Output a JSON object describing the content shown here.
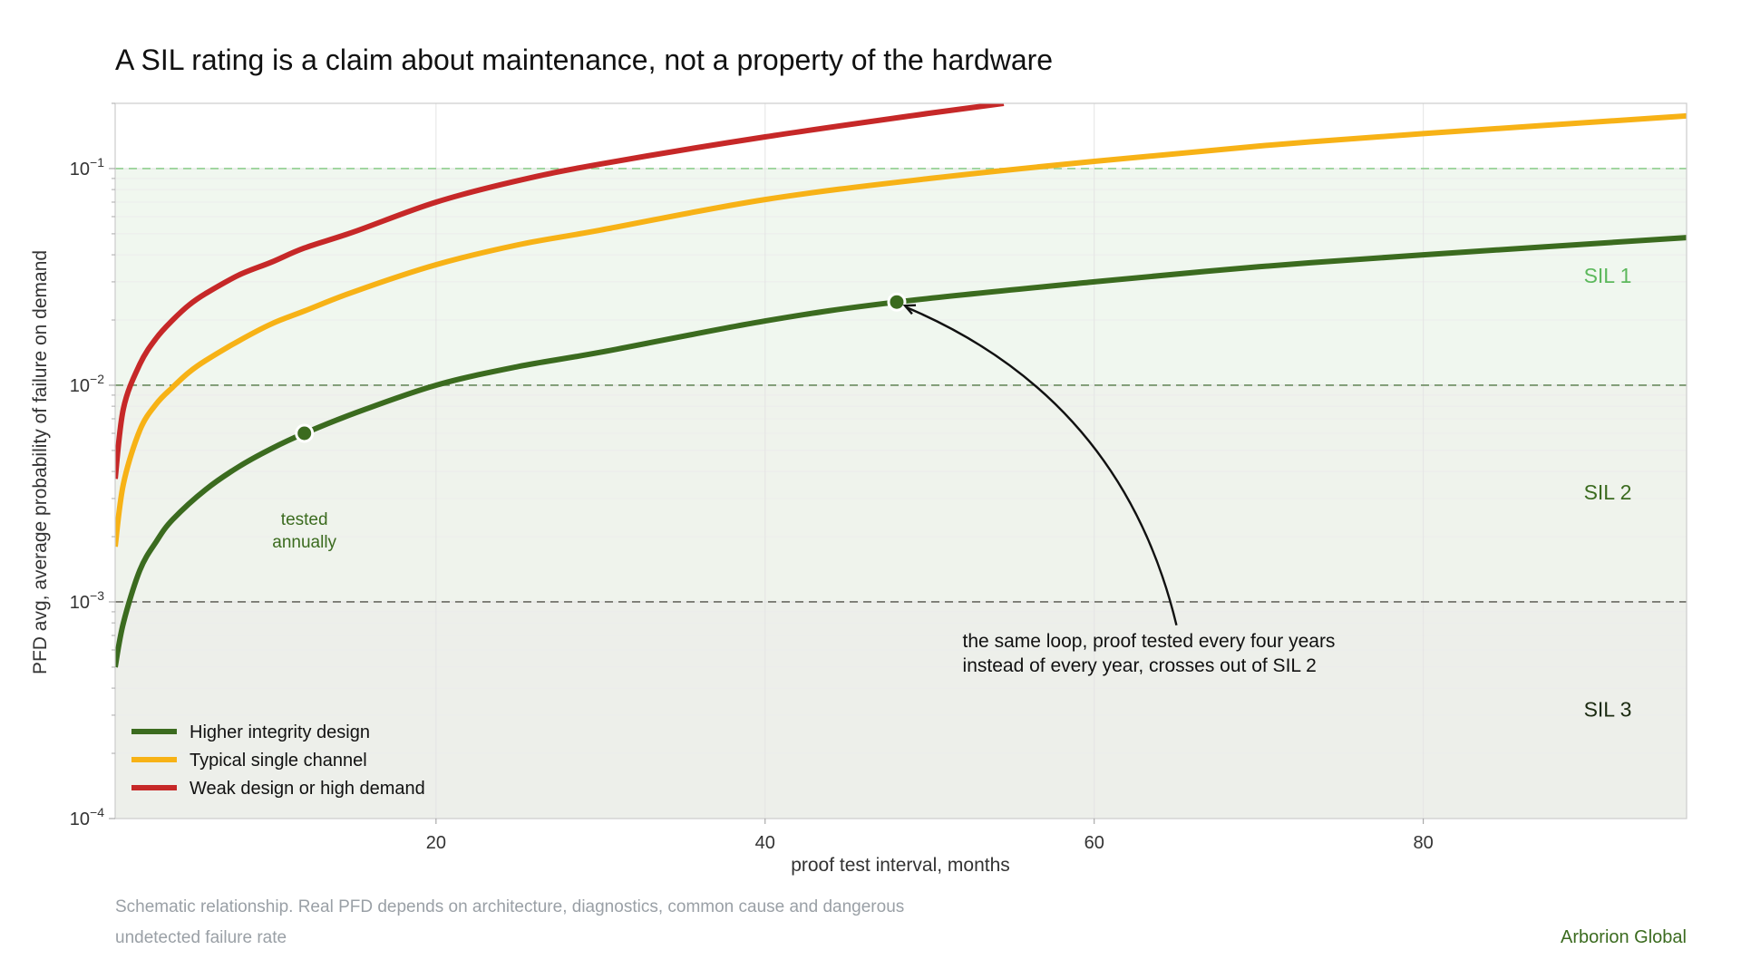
{
  "chart_data": {
    "type": "line",
    "title": "A SIL rating is a claim about maintenance, not a property of the hardware",
    "xlabel": "proof test interval, months",
    "ylabel": "PFD avg, average probability of failure on demand",
    "xlim": [
      0.5,
      96
    ],
    "ylim": [
      0.0001,
      0.2
    ],
    "x_scale": "linear",
    "y_scale": "log",
    "grid": true,
    "legend_position": "bottom-left",
    "x_ticks": [
      {
        "value": 20,
        "label": "20"
      },
      {
        "value": 40,
        "label": "40"
      },
      {
        "value": 60,
        "label": "60"
      },
      {
        "value": 80,
        "label": "80"
      }
    ],
    "y_ticks": [
      {
        "value": 0.1,
        "mant": "10",
        "exp": "−1"
      },
      {
        "value": 0.01,
        "mant": "10",
        "exp": "−2"
      },
      {
        "value": 0.001,
        "mant": "10",
        "exp": "−3"
      },
      {
        "value": 0.0001,
        "mant": "10",
        "exp": "−4"
      }
    ],
    "bands": [
      {
        "label": "SIL 1",
        "from": 0.01,
        "to": 0.1,
        "fill": "#f0f7ef",
        "label_y": 0.032,
        "label_color": "#5cb85c"
      },
      {
        "label": "SIL 2",
        "from": 0.001,
        "to": 0.01,
        "fill": "#eff3ec",
        "label_y": 0.0032,
        "label_color": "#3b6b1f"
      },
      {
        "label": "SIL 3",
        "from": 0.0001,
        "to": 0.001,
        "fill": "#edefea",
        "label_y": 0.00032,
        "label_color": "#1a2a10"
      }
    ],
    "thresholds": [
      {
        "value": 0.1,
        "color": "#8fce8f"
      },
      {
        "value": 0.01,
        "color": "#6a8a5e"
      },
      {
        "value": 0.001,
        "color": "#6a6a62"
      }
    ],
    "series": [
      {
        "name": "Higher integrity design",
        "color": "#3b6b1f",
        "x": [
          0.5,
          1,
          2,
          3,
          4,
          6,
          8,
          10,
          12,
          15,
          20,
          25,
          30,
          40,
          48,
          60,
          70,
          80,
          96
        ],
        "y": [
          0.0005,
          0.0008,
          0.0014,
          0.0019,
          0.0024,
          0.0033,
          0.0042,
          0.0051,
          0.006,
          0.0074,
          0.01,
          0.0122,
          0.0142,
          0.0198,
          0.0242,
          0.03,
          0.0352,
          0.04,
          0.048
        ]
      },
      {
        "name": "Typical single channel",
        "color": "#f7b216",
        "x": [
          0.5,
          1,
          2,
          3,
          4,
          5,
          6,
          8,
          10,
          12,
          15,
          20,
          25,
          30,
          40,
          50,
          60,
          70,
          80,
          96
        ],
        "y": [
          0.0018,
          0.0035,
          0.0062,
          0.0082,
          0.0098,
          0.0115,
          0.013,
          0.016,
          0.0192,
          0.022,
          0.027,
          0.036,
          0.0445,
          0.052,
          0.072,
          0.09,
          0.108,
          0.127,
          0.145,
          0.175
        ]
      },
      {
        "name": "Weak design or high demand",
        "color": "#c62828",
        "x": [
          0.5,
          1,
          2,
          3,
          4,
          5,
          6,
          8,
          10,
          12,
          15,
          20,
          25,
          30,
          40,
          50,
          54.5
        ],
        "y": [
          0.0037,
          0.0078,
          0.0125,
          0.0165,
          0.02,
          0.0235,
          0.0265,
          0.0322,
          0.037,
          0.043,
          0.051,
          0.07,
          0.088,
          0.105,
          0.14,
          0.18,
          0.2
        ]
      }
    ],
    "markers": [
      {
        "series": "Higher integrity design",
        "x": 12,
        "y": 0.006
      },
      {
        "series": "Higher integrity design",
        "x": 48,
        "y": 0.0242
      }
    ],
    "annotations": [
      {
        "lines": [
          "tested",
          "annually"
        ],
        "x": 12,
        "y": 0.0024,
        "color": "#3b6b1f"
      },
      {
        "lines": [
          "the same loop, proof tested every four years",
          "instead of every year, crosses out of SIL 2"
        ],
        "x": 52,
        "y": 0.0006,
        "arrow_from": [
          65,
          0.00078
        ],
        "arrow_to": [
          48.5,
          0.0242
        ],
        "color": "#111111"
      }
    ]
  },
  "footnote": {
    "line1": "Schematic relationship. Real PFD depends on architecture, diagnostics, common cause and dangerous",
    "line2": "undetected failure rate"
  },
  "brand": "Arborion Global",
  "colors": {
    "axis": "#cccccc",
    "grid": "#e6e6e6",
    "tick_text": "#333333",
    "footnote": "#9aa0a6",
    "brand": "#3b6b1f"
  }
}
